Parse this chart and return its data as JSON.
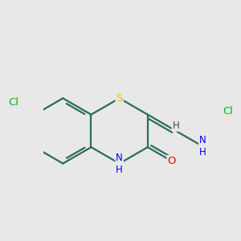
{
  "bg_color": "#e8e8e8",
  "bond_color": "#2d6b5a",
  "bond_width": 1.6,
  "atom_colors": {
    "S": "#cccc00",
    "N": "#0000ee",
    "O": "#ee0000",
    "Cl": "#00bb00",
    "H": "#444444",
    "C": "#2d6b5a"
  },
  "font_size": 9.5,
  "dbo": 0.012
}
